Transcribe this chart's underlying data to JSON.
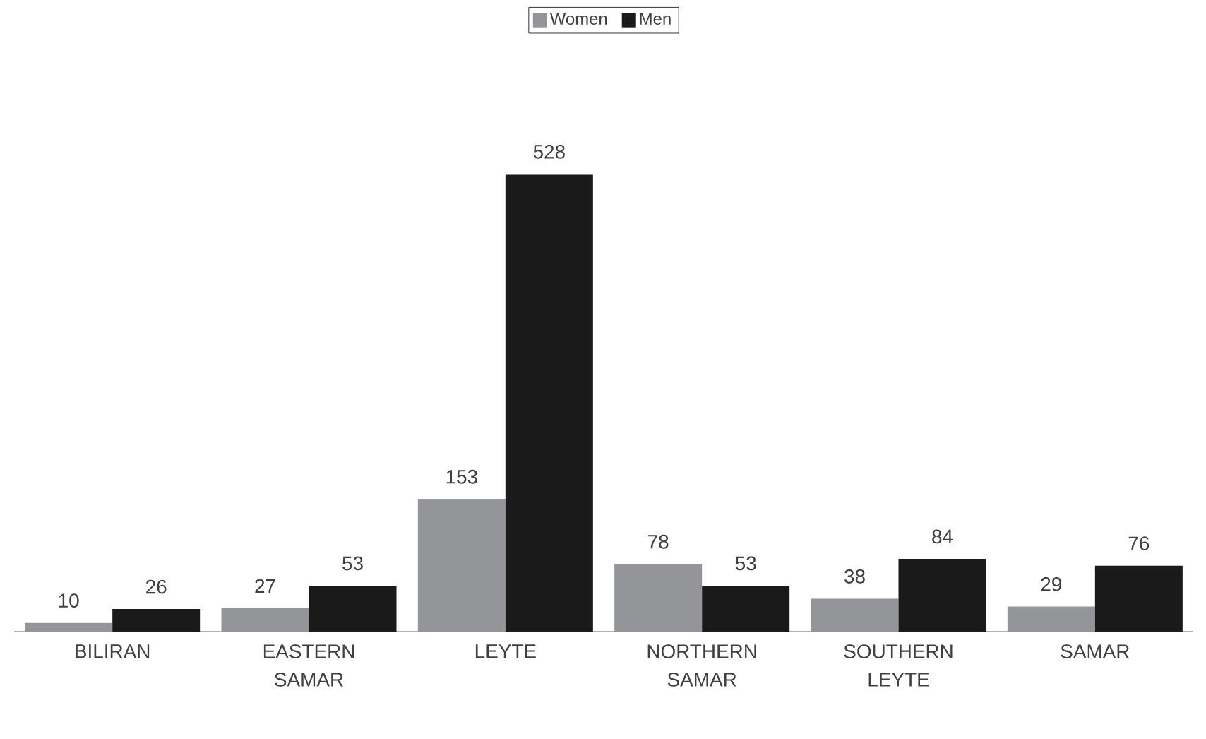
{
  "chart_data": {
    "type": "bar",
    "categories": [
      "BILIRAN",
      "EASTERN SAMAR",
      "LEYTE",
      "NORTHERN SAMAR",
      "SOUTHERN LEYTE",
      "SAMAR"
    ],
    "series": [
      {
        "name": "Women",
        "color": "#939598",
        "values": [
          10,
          27,
          153,
          78,
          38,
          29
        ]
      },
      {
        "name": "Men",
        "color": "#1a1a1a",
        "values": [
          26,
          53,
          528,
          53,
          84,
          76
        ]
      }
    ],
    "data_labels": true,
    "legend": "top"
  }
}
